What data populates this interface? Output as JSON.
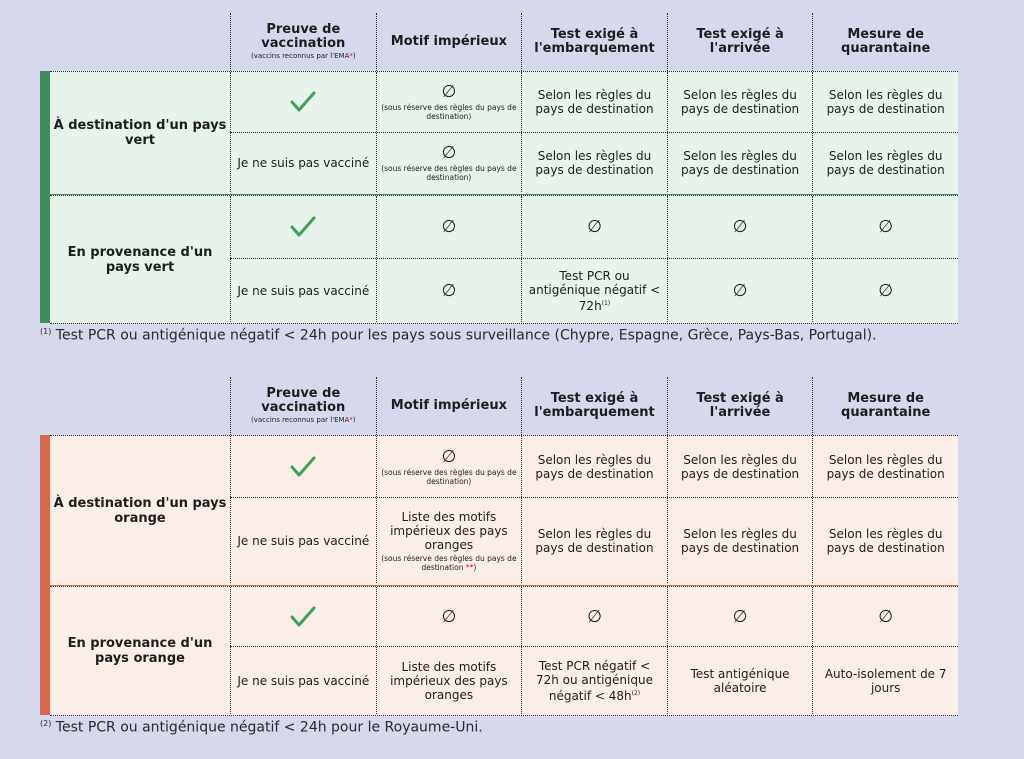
{
  "headers": {
    "proof_title": "Preuve de vaccination",
    "proof_sub_prefix": "(vaccins reconnus par l'EMA",
    "proof_sub_star": "*",
    "proof_sub_suffix": ")",
    "reason": "Motif impérieux",
    "test_boarding": "Test exigé à l'embarquement",
    "test_arrival": "Test exigé à l'arrivée",
    "quarantine": "Mesure de quarantaine"
  },
  "symbols": {
    "empty": "∅"
  },
  "colors": {
    "green": "#3f8f5c",
    "green_bg": "#e8f3ec",
    "orange": "#d9694a",
    "orange_bg": "#fbeee8",
    "check": "#3fa05a",
    "star": "#e1000f"
  },
  "common": {
    "not_vaccinated": "Je ne suis pas vacciné",
    "dest_rules": "Selon les règles du pays de destination",
    "reserve_note": "(sous réserve des règles du pays de destination)",
    "reserve_note_prefix": "(sous réserve des règles du pays de destination ",
    "reserve_note_star": "**",
    "reserve_note_suffix": ")",
    "motifs_list": "Liste des motifs impérieux des pays oranges"
  },
  "green_table": {
    "dest_label": "À destination d'un pays vert",
    "from_label": "En provenance d'un pays vert",
    "from_unvax_boarding": "Test PCR ou antigénique négatif < 72h",
    "from_unvax_boarding_sup": "(1)"
  },
  "orange_table": {
    "dest_label": "À destination d'un pays orange",
    "from_label": "En provenance d'un pays orange",
    "from_unvax_boarding": "Test PCR négatif < 72h ou antigénique négatif < 48h",
    "from_unvax_boarding_sup": "(2)",
    "from_unvax_arrival": "Test antigénique aléatoire",
    "from_unvax_quarantine": "Auto-isolement de 7 jours"
  },
  "footnotes": {
    "note1_mark": "(1)",
    "note1": "Test PCR ou antigénique négatif < 24h pour les pays sous surveillance (Chypre, Espagne, Grèce, Pays-Bas, Portugal).",
    "note2_mark": "(2)",
    "note2": "Test PCR ou antigénique négatif < 24h pour le Royaume-Uni."
  }
}
